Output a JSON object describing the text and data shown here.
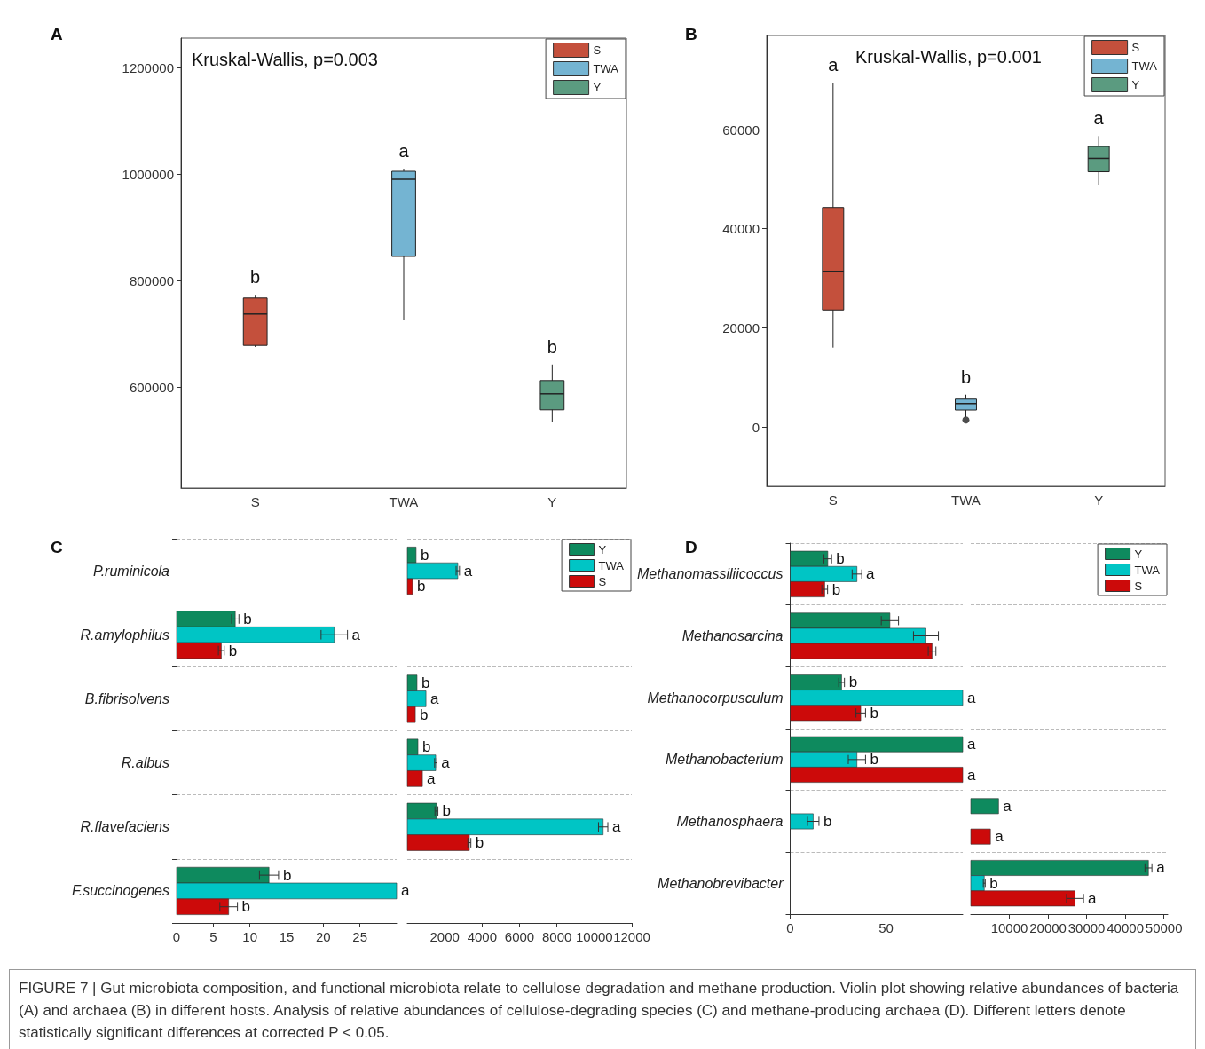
{
  "chart_data": [
    {
      "type": "box",
      "title": "A",
      "categories": [
        "S",
        "TWA",
        "Y"
      ],
      "ylim": [
        410000,
        1255000
      ],
      "yticks": [
        600000,
        800000,
        1000000,
        1200000
      ],
      "legend": "top right",
      "series": [
        {
          "name": "S",
          "color": "#c4503c",
          "boxes": [
            {
              "low": 675000,
              "q1": 678000,
              "median": 737000,
              "q3": 767000,
              "high": 773000
            },
            null,
            null
          ]
        },
        {
          "name": "TWA",
          "color": "#74b4d2",
          "boxes": [
            null,
            {
              "low": 725000,
              "q1": 845000,
              "median": 990000,
              "q3": 1005000,
              "high": 1010000
            },
            null
          ]
        },
        {
          "name": "Y",
          "color": "#5b9b80",
          "boxes": [
            null,
            null,
            {
              "low": 535000,
              "q1": 557000,
              "median": 587000,
              "q3": 612000,
              "high": 642000
            }
          ]
        }
      ],
      "annotations": [
        "Kruskal-Wallis, p=0.003",
        "b",
        "a",
        "b"
      ]
    },
    {
      "type": "box",
      "title": "B",
      "categories": [
        "S",
        "TWA",
        "Y"
      ],
      "ylim": [
        -12000,
        79000
      ],
      "yticks": [
        0,
        20000,
        40000,
        60000
      ],
      "legend": "top right",
      "series": [
        {
          "name": "S",
          "color": "#c4503c",
          "boxes": [
            {
              "low": 16000,
              "q1": 23600,
              "median": 31400,
              "q3": 44300,
              "high": 69500
            },
            null,
            null
          ]
        },
        {
          "name": "TWA",
          "color": "#74b4d2",
          "boxes": [
            null,
            {
              "low": 2000,
              "q1": 3400,
              "median": 4700,
              "q3": 5600,
              "high": 6500,
              "outliers": [
                1400
              ]
            },
            null
          ]
        },
        {
          "name": "Y",
          "color": "#5b9b80",
          "boxes": [
            null,
            null,
            {
              "low": 48800,
              "q1": 51500,
              "median": 54200,
              "q3": 56600,
              "high": 58700
            }
          ]
        }
      ],
      "annotations": [
        "Kruskal-Wallis, p=0.001",
        "a",
        "b",
        "a"
      ]
    },
    {
      "type": "bar",
      "title": "C",
      "orientation": "horizontal",
      "categories": [
        "P.ruminicola",
        "R.amylophilus",
        "B.fibrisolvens",
        "R.albus",
        "R.flavefaciens",
        "F.succinogenes"
      ],
      "xlim": [
        0,
        30
      ],
      "xticks": [
        0,
        5,
        10,
        15,
        20,
        25
      ],
      "grid": "y",
      "series": [
        {
          "color": "#0e8a5e",
          "values": [
            null,
            8.0,
            null,
            null,
            null,
            12.6
          ],
          "errors": [
            null,
            0.5,
            null,
            null,
            null,
            1.3
          ],
          "value_labels": [
            null,
            "b",
            null,
            null,
            null,
            "b"
          ]
        },
        {
          "color": "#00c5c5",
          "values": [
            null,
            21.5,
            null,
            null,
            null,
            30
          ],
          "errors": [
            null,
            1.8,
            null,
            null,
            null,
            null
          ],
          "value_labels": [
            null,
            "a",
            null,
            null,
            null,
            "a"
          ]
        },
        {
          "color": "#cc0a0a",
          "values": [
            null,
            6.1,
            null,
            null,
            null,
            7.1
          ],
          "errors": [
            null,
            0.4,
            null,
            null,
            null,
            1.2
          ],
          "value_labels": [
            null,
            "b",
            null,
            null,
            null,
            "b"
          ]
        }
      ]
    },
    {
      "type": "bar",
      "orientation": "horizontal",
      "categories": [
        null,
        null,
        null,
        null,
        null,
        null
      ],
      "xlim": [
        0,
        12000
      ],
      "xticks": [
        2000,
        4000,
        6000,
        8000,
        10000,
        12000
      ],
      "grid": "y",
      "legend": "top right",
      "series": [
        {
          "name": "Y",
          "color": "#0e8a5e",
          "values": [
            470,
            null,
            520,
            570,
            1560,
            null
          ],
          "errors": [
            null,
            null,
            null,
            null,
            80,
            null
          ],
          "value_labels": [
            "b",
            null,
            "b",
            "b",
            "b",
            null
          ]
        },
        {
          "name": "TWA",
          "color": "#00c5c5",
          "values": [
            2700,
            null,
            1000,
            1520,
            10470,
            null
          ],
          "errors": [
            90,
            null,
            null,
            60,
            250,
            null
          ],
          "value_labels": [
            "a",
            null,
            "a",
            "a",
            "a",
            null
          ]
        },
        {
          "name": "S",
          "color": "#cc0a0a",
          "values": [
            280,
            null,
            430,
            810,
            3320,
            null
          ],
          "errors": [
            null,
            null,
            null,
            null,
            80,
            null
          ],
          "value_labels": [
            "b",
            null,
            "b",
            "a",
            "b",
            null
          ]
        }
      ]
    },
    {
      "type": "bar",
      "title": "D",
      "orientation": "horizontal",
      "categories": [
        "Methanomassiliicoccus",
        "Methanosarcina",
        "Methanocorpusculum",
        "Methanobacterium",
        "Methanosphaera",
        "Methanobrevibacter"
      ],
      "xlim": [
        0,
        90
      ],
      "xticks": [
        0,
        50
      ],
      "grid": "y",
      "series": [
        {
          "color": "#0e8a5e",
          "values": [
            19.6,
            52,
            26.8,
            90,
            null,
            null
          ],
          "errors": [
            2,
            4.5,
            1.5,
            null,
            null,
            null
          ],
          "value_labels": [
            "b",
            null,
            "b",
            "a",
            null,
            null
          ]
        },
        {
          "color": "#00c5c5",
          "values": [
            34.8,
            70.8,
            90,
            34.8,
            12,
            null
          ],
          "errors": [
            2.5,
            6.5,
            null,
            4.5,
            3,
            null
          ],
          "value_labels": [
            "a",
            null,
            "a",
            "b",
            "b",
            null
          ]
        },
        {
          "color": "#cc0a0a",
          "values": [
            18,
            74,
            36.8,
            90,
            null,
            null
          ],
          "errors": [
            1.5,
            2,
            2.5,
            null,
            null,
            null
          ],
          "value_labels": [
            "b",
            null,
            "b",
            "a",
            null,
            null
          ]
        }
      ]
    },
    {
      "type": "bar",
      "orientation": "horizontal",
      "categories": [
        null,
        null,
        null,
        null,
        null,
        null
      ],
      "xlim": [
        0,
        51000
      ],
      "xticks": [
        10000,
        20000,
        30000,
        40000,
        50000
      ],
      "grid": "y",
      "legend": "top right",
      "series": [
        {
          "name": "Y",
          "color": "#0e8a5e",
          "values": [
            null,
            null,
            null,
            null,
            7200,
            46000
          ],
          "errors": [
            null,
            null,
            null,
            null,
            null,
            900
          ],
          "value_labels": [
            null,
            null,
            null,
            null,
            "a",
            "a"
          ]
        },
        {
          "name": "TWA",
          "color": "#00c5c5",
          "values": [
            null,
            null,
            null,
            null,
            null,
            3500
          ],
          "errors": [
            null,
            null,
            null,
            null,
            null,
            250
          ],
          "value_labels": [
            null,
            null,
            null,
            null,
            null,
            "b"
          ]
        },
        {
          "name": "S",
          "color": "#cc0a0a",
          "values": [
            null,
            null,
            null,
            null,
            5100,
            27000
          ],
          "errors": [
            null,
            null,
            null,
            null,
            null,
            2200
          ],
          "value_labels": [
            null,
            null,
            null,
            null,
            "a",
            "a"
          ]
        }
      ],
      "annotations": [
        "FIGURE 7 | Gut microbiota composition, and functional microbiota relate to cellulose degradation and methane production. Violin plot showing relative abundances of bacteria (A) and archaea (B) in different hosts. Analysis of relative abundances of cellulose-degrading species (C) and methane-producing archaea (D). Different letters denote statistically significant differences at corrected P < 0.05."
      ]
    }
  ]
}
